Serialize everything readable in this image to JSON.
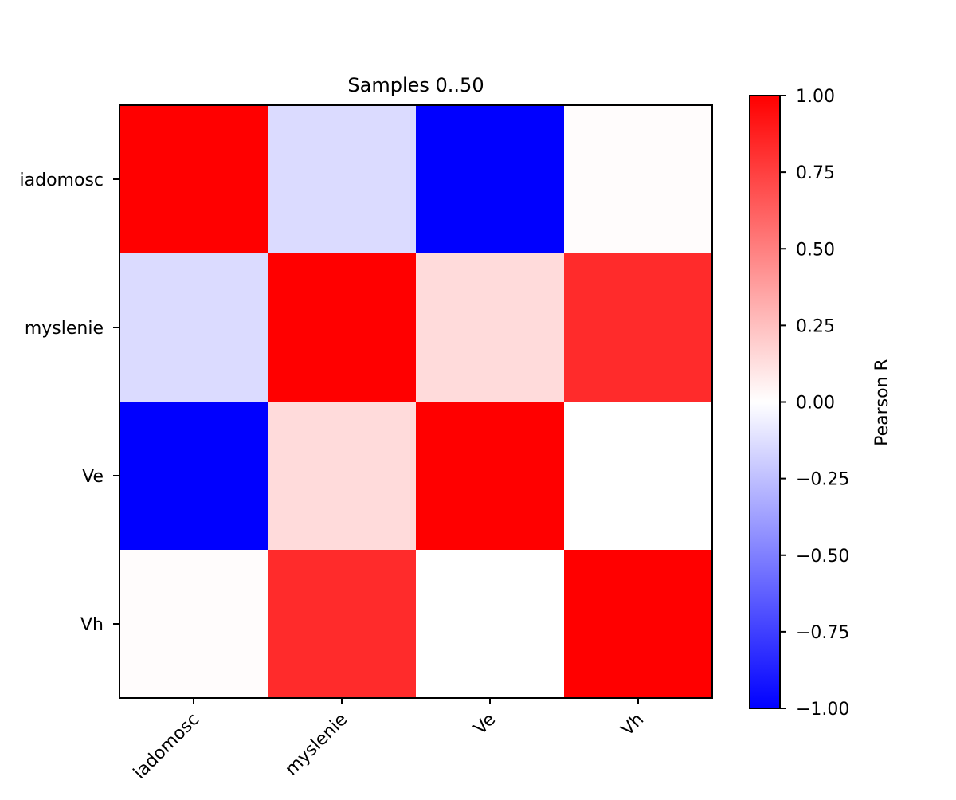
{
  "chart_data": {
    "type": "heatmap",
    "title": "Samples 0..50",
    "row_labels": [
      "iadomosc",
      "myslenie",
      "Ve",
      "Vh"
    ],
    "col_labels": [
      "iadomosc",
      "myslenie",
      "Ve",
      "Vh"
    ],
    "values": [
      [
        1.0,
        -0.14,
        -1.0,
        0.01
      ],
      [
        -0.14,
        1.0,
        0.14,
        0.83
      ],
      [
        -1.0,
        0.14,
        1.0,
        0.0
      ],
      [
        0.01,
        0.83,
        0.0,
        1.0
      ]
    ],
    "colormap": "bwr",
    "colormap_colors": {
      "low": "#0000ff",
      "mid": "#ffffff",
      "high": "#ff0000"
    },
    "vmin": -1.0,
    "vmax": 1.0,
    "colorbar": {
      "label": "Pearson R",
      "ticks": [
        1.0,
        0.75,
        0.5,
        0.25,
        0.0,
        -0.25,
        -0.5,
        -0.75,
        -1.0
      ],
      "tick_labels": [
        "1.00",
        "0.75",
        "0.50",
        "0.25",
        "0.00",
        "−0.25",
        "−0.50",
        "−0.75",
        "−1.00"
      ]
    }
  }
}
